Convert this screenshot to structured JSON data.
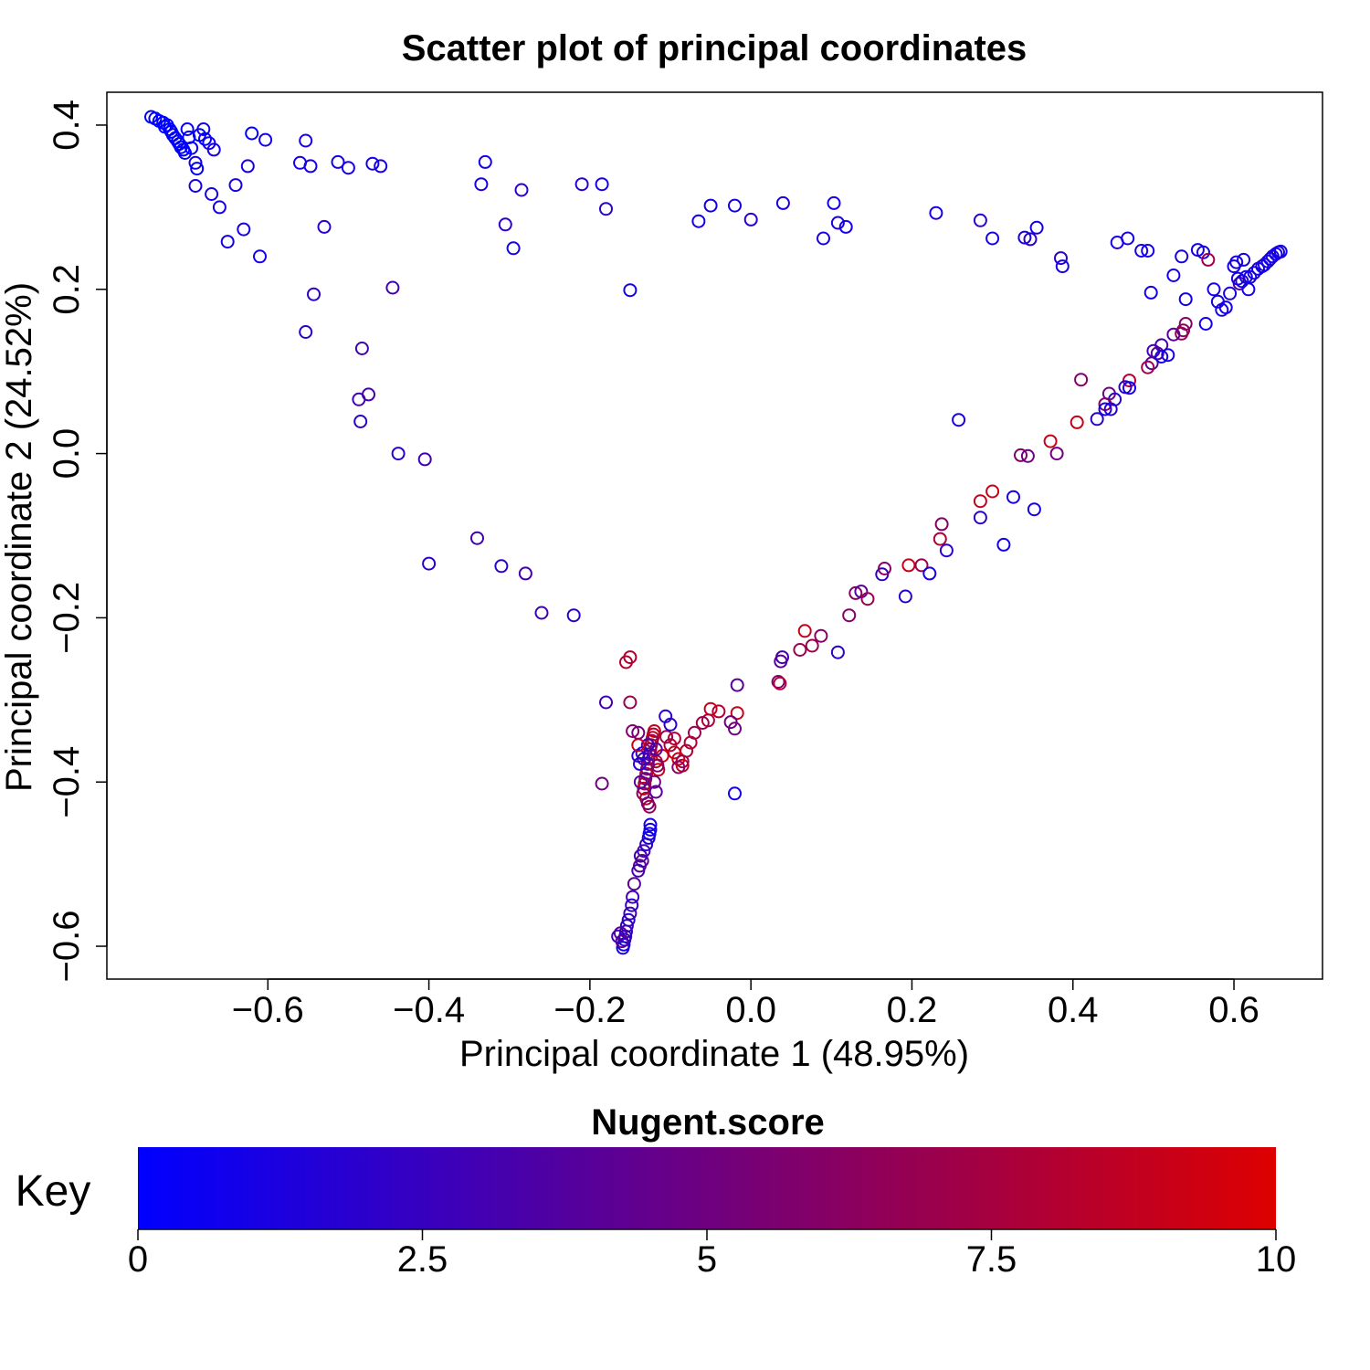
{
  "chart_data": {
    "type": "scatter",
    "title": "Scatter plot of principal coordinates",
    "xlabel": "Principal coordinate 1 (48.95%)",
    "ylabel": "Principal coordinate 2 (24.52%)",
    "xlim": [
      -0.8,
      0.71
    ],
    "ylim": [
      -0.64,
      0.44
    ],
    "xticks": [
      -0.6,
      -0.4,
      -0.2,
      0.0,
      0.2,
      0.4,
      0.6
    ],
    "xtick_labels": [
      "−0.6",
      "−0.4",
      "−0.2",
      "0.0",
      "0.2",
      "0.4",
      "0.6"
    ],
    "yticks": [
      -0.6,
      -0.4,
      -0.2,
      0.0,
      0.2,
      0.4
    ],
    "ytick_labels": [
      "−0.6",
      "−0.4",
      "−0.2",
      "0.0",
      "0.2",
      "0.4"
    ],
    "grid": false,
    "marker": "open-circle",
    "colorbar": {
      "title": "Nugent.score",
      "label": "Key",
      "min": 0,
      "max": 10,
      "ticks": [
        0,
        2.5,
        5,
        7.5,
        10
      ],
      "tick_labels": [
        "0",
        "2.5",
        "5",
        "7.5",
        "10"
      ],
      "low_color": "#0000ff",
      "high_color": "#dd0000"
    },
    "points": [
      [
        -0.745,
        0.41,
        0
      ],
      [
        -0.74,
        0.408,
        0
      ],
      [
        -0.735,
        0.405,
        0
      ],
      [
        -0.73,
        0.403,
        0
      ],
      [
        -0.728,
        0.398,
        0
      ],
      [
        -0.725,
        0.4,
        0
      ],
      [
        -0.722,
        0.395,
        0
      ],
      [
        -0.72,
        0.392,
        0
      ],
      [
        -0.718,
        0.388,
        0
      ],
      [
        -0.715,
        0.384,
        0
      ],
      [
        -0.712,
        0.38,
        0
      ],
      [
        -0.71,
        0.377,
        0
      ],
      [
        -0.708,
        0.373,
        0
      ],
      [
        -0.705,
        0.37,
        0
      ],
      [
        -0.703,
        0.366,
        0
      ],
      [
        -0.7,
        0.395,
        0
      ],
      [
        -0.698,
        0.385,
        0
      ],
      [
        -0.695,
        0.372,
        0
      ],
      [
        -0.69,
        0.354,
        1
      ],
      [
        -0.688,
        0.347,
        0
      ],
      [
        -0.685,
        0.388,
        0
      ],
      [
        -0.68,
        0.395,
        1
      ],
      [
        -0.678,
        0.383,
        0
      ],
      [
        -0.673,
        0.378,
        1
      ],
      [
        -0.67,
        0.316,
        1
      ],
      [
        -0.667,
        0.37,
        1
      ],
      [
        -0.66,
        0.3,
        1
      ],
      [
        -0.69,
        0.326,
        1
      ],
      [
        -0.65,
        0.258,
        1
      ],
      [
        -0.64,
        0.327,
        1
      ],
      [
        -0.63,
        0.273,
        1
      ],
      [
        -0.625,
        0.35,
        1
      ],
      [
        -0.62,
        0.39,
        0
      ],
      [
        -0.61,
        0.24,
        1
      ],
      [
        -0.603,
        0.382,
        1
      ],
      [
        -0.56,
        0.354,
        1
      ],
      [
        -0.553,
        0.381,
        1
      ],
      [
        -0.547,
        0.35,
        1
      ],
      [
        -0.543,
        0.194,
        2
      ],
      [
        -0.53,
        0.276,
        2
      ],
      [
        -0.513,
        0.355,
        1
      ],
      [
        -0.5,
        0.348,
        1
      ],
      [
        -0.47,
        0.353,
        1
      ],
      [
        -0.46,
        0.35,
        1
      ],
      [
        -0.553,
        0.148,
        2
      ],
      [
        -0.483,
        0.128,
        3
      ],
      [
        -0.445,
        0.202,
        3
      ],
      [
        -0.487,
        0.066,
        3
      ],
      [
        -0.475,
        0.072,
        3
      ],
      [
        -0.485,
        0.039,
        2
      ],
      [
        -0.438,
        0.0,
        2
      ],
      [
        -0.405,
        -0.007,
        3
      ],
      [
        -0.4,
        -0.134,
        2
      ],
      [
        -0.34,
        -0.103,
        3
      ],
      [
        -0.31,
        -0.137,
        2
      ],
      [
        -0.28,
        -0.146,
        3
      ],
      [
        -0.26,
        -0.194,
        3
      ],
      [
        -0.22,
        -0.197,
        2
      ],
      [
        -0.33,
        0.355,
        1
      ],
      [
        -0.335,
        0.328,
        1
      ],
      [
        -0.305,
        0.279,
        2
      ],
      [
        -0.295,
        0.25,
        1
      ],
      [
        -0.285,
        0.321,
        2
      ],
      [
        -0.21,
        0.328,
        2
      ],
      [
        -0.185,
        0.328,
        1
      ],
      [
        -0.18,
        0.298,
        2
      ],
      [
        -0.15,
        0.199,
        1
      ],
      [
        -0.065,
        0.283,
        1
      ],
      [
        -0.05,
        0.302,
        1
      ],
      [
        -0.02,
        0.302,
        1
      ],
      [
        0.0,
        0.285,
        2
      ],
      [
        0.04,
        0.305,
        1
      ],
      [
        0.09,
        0.262,
        1
      ],
      [
        0.103,
        0.305,
        1
      ],
      [
        0.108,
        0.281,
        1
      ],
      [
        0.118,
        0.276,
        1
      ],
      [
        0.23,
        0.293,
        1
      ],
      [
        0.285,
        0.284,
        2
      ],
      [
        0.3,
        0.262,
        1
      ],
      [
        0.34,
        0.263,
        1
      ],
      [
        0.347,
        0.261,
        2
      ],
      [
        0.355,
        0.275,
        1
      ],
      [
        0.385,
        0.238,
        2
      ],
      [
        0.387,
        0.228,
        1
      ],
      [
        0.455,
        0.257,
        1
      ],
      [
        0.468,
        0.262,
        1
      ],
      [
        0.485,
        0.247,
        1
      ],
      [
        0.493,
        0.247,
        1
      ],
      [
        0.497,
        0.196,
        1
      ],
      [
        0.525,
        0.217,
        1
      ],
      [
        0.535,
        0.24,
        1
      ],
      [
        0.54,
        0.188,
        1
      ],
      [
        0.555,
        0.248,
        1
      ],
      [
        0.562,
        0.245,
        1
      ],
      [
        0.568,
        0.236,
        7
      ],
      [
        0.565,
        0.158,
        1
      ],
      [
        0.575,
        0.2,
        1
      ],
      [
        0.58,
        0.185,
        1
      ],
      [
        0.585,
        0.175,
        1
      ],
      [
        0.59,
        0.178,
        1
      ],
      [
        0.595,
        0.195,
        1
      ],
      [
        0.6,
        0.228,
        1
      ],
      [
        0.603,
        0.233,
        1
      ],
      [
        0.607,
        0.207,
        4
      ],
      [
        0.61,
        0.21,
        1
      ],
      [
        0.615,
        0.215,
        1
      ],
      [
        0.618,
        0.2,
        1
      ],
      [
        0.62,
        0.215,
        1
      ],
      [
        0.625,
        0.22,
        1
      ],
      [
        0.63,
        0.225,
        1
      ],
      [
        0.635,
        0.228,
        1
      ],
      [
        0.638,
        0.23,
        1
      ],
      [
        0.642,
        0.234,
        1
      ],
      [
        0.645,
        0.237,
        1
      ],
      [
        0.648,
        0.24,
        1
      ],
      [
        0.652,
        0.243,
        1
      ],
      [
        0.655,
        0.245,
        1
      ],
      [
        0.658,
        0.246,
        1
      ],
      [
        0.612,
        0.236,
        1
      ],
      [
        0.605,
        0.213,
        1
      ],
      [
        0.54,
        0.158,
        6
      ],
      [
        0.537,
        0.15,
        6
      ],
      [
        0.535,
        0.146,
        7
      ],
      [
        0.525,
        0.145,
        4
      ],
      [
        0.51,
        0.132,
        3
      ],
      [
        0.505,
        0.122,
        4
      ],
      [
        0.5,
        0.125,
        3
      ],
      [
        0.498,
        0.11,
        4
      ],
      [
        0.493,
        0.105,
        7
      ],
      [
        0.51,
        0.118,
        1
      ],
      [
        0.518,
        0.12,
        1
      ],
      [
        0.47,
        0.089,
        8
      ],
      [
        0.465,
        0.081,
        2
      ],
      [
        0.47,
        0.08,
        1
      ],
      [
        0.445,
        0.073,
        5
      ],
      [
        0.452,
        0.066,
        2
      ],
      [
        0.44,
        0.06,
        6
      ],
      [
        0.447,
        0.054,
        2
      ],
      [
        0.44,
        0.054,
        1
      ],
      [
        0.43,
        0.042,
        2
      ],
      [
        0.41,
        0.09,
        6
      ],
      [
        0.405,
        0.038,
        9
      ],
      [
        0.372,
        0.015,
        9
      ],
      [
        0.38,
        0.0,
        5
      ],
      [
        0.335,
        -0.002,
        6
      ],
      [
        0.344,
        -0.003,
        5
      ],
      [
        0.3,
        -0.046,
        9
      ],
      [
        0.285,
        -0.058,
        9
      ],
      [
        0.285,
        -0.078,
        2
      ],
      [
        0.326,
        -0.053,
        1
      ],
      [
        0.352,
        -0.068,
        1
      ],
      [
        0.314,
        -0.111,
        1
      ],
      [
        0.237,
        -0.086,
        6
      ],
      [
        0.235,
        -0.104,
        8
      ],
      [
        0.243,
        -0.118,
        2
      ],
      [
        0.258,
        0.041,
        1
      ],
      [
        0.196,
        -0.136,
        9
      ],
      [
        0.212,
        -0.136,
        7
      ],
      [
        0.222,
        -0.146,
        1
      ],
      [
        0.163,
        -0.147,
        2
      ],
      [
        0.166,
        -0.14,
        6
      ],
      [
        0.192,
        -0.174,
        2
      ],
      [
        0.13,
        -0.17,
        6
      ],
      [
        0.137,
        -0.168,
        4
      ],
      [
        0.145,
        -0.177,
        7
      ],
      [
        0.122,
        -0.197,
        6
      ],
      [
        0.108,
        -0.242,
        2
      ],
      [
        0.087,
        -0.222,
        6
      ],
      [
        0.076,
        -0.234,
        7
      ],
      [
        0.067,
        -0.216,
        9
      ],
      [
        0.061,
        -0.239,
        7
      ],
      [
        0.039,
        -0.248,
        3
      ],
      [
        0.037,
        -0.253,
        4
      ],
      [
        0.034,
        -0.278,
        6
      ],
      [
        0.036,
        -0.28,
        8
      ],
      [
        -0.017,
        -0.316,
        9
      ],
      [
        -0.02,
        -0.335,
        5
      ],
      [
        -0.017,
        -0.282,
        4
      ],
      [
        -0.025,
        -0.327,
        5
      ],
      [
        -0.02,
        -0.414,
        1
      ],
      [
        -0.04,
        -0.314,
        8
      ],
      [
        -0.05,
        -0.311,
        9
      ],
      [
        -0.053,
        -0.325,
        8
      ],
      [
        -0.06,
        -0.328,
        7
      ],
      [
        -0.07,
        -0.34,
        7
      ],
      [
        -0.075,
        -0.352,
        8
      ],
      [
        -0.08,
        -0.362,
        8
      ],
      [
        -0.085,
        -0.38,
        9
      ],
      [
        -0.09,
        -0.372,
        9
      ],
      [
        -0.095,
        -0.364,
        9
      ],
      [
        -0.1,
        -0.355,
        8
      ],
      [
        -0.105,
        -0.345,
        7
      ],
      [
        -0.11,
        -0.368,
        9
      ],
      [
        -0.115,
        -0.385,
        9
      ],
      [
        -0.118,
        -0.375,
        8
      ],
      [
        -0.1,
        -0.33,
        2
      ],
      [
        -0.106,
        -0.32,
        2
      ],
      [
        -0.09,
        -0.382,
        6
      ],
      [
        -0.085,
        -0.375,
        7
      ],
      [
        -0.095,
        -0.347,
        8
      ],
      [
        -0.12,
        -0.338,
        9
      ],
      [
        -0.121,
        -0.342,
        8
      ],
      [
        -0.122,
        -0.346,
        9
      ],
      [
        -0.123,
        -0.35,
        7
      ],
      [
        -0.124,
        -0.355,
        8
      ],
      [
        -0.125,
        -0.36,
        6
      ],
      [
        -0.126,
        -0.366,
        5
      ],
      [
        -0.127,
        -0.372,
        7
      ],
      [
        -0.128,
        -0.378,
        4
      ],
      [
        -0.129,
        -0.384,
        6
      ],
      [
        -0.13,
        -0.39,
        8
      ],
      [
        -0.131,
        -0.396,
        5
      ],
      [
        -0.132,
        -0.402,
        7
      ],
      [
        -0.133,
        -0.408,
        9
      ],
      [
        -0.134,
        -0.414,
        6
      ],
      [
        -0.13,
        -0.42,
        8
      ],
      [
        -0.128,
        -0.426,
        5
      ],
      [
        -0.126,
        -0.43,
        7
      ],
      [
        -0.135,
        -0.365,
        2
      ],
      [
        -0.133,
        -0.372,
        3
      ],
      [
        -0.118,
        -0.36,
        4
      ],
      [
        -0.116,
        -0.38,
        6
      ],
      [
        -0.138,
        -0.378,
        2
      ],
      [
        -0.128,
        -0.355,
        3
      ],
      [
        -0.14,
        -0.368,
        2
      ],
      [
        -0.14,
        -0.34,
        5
      ],
      [
        -0.14,
        -0.355,
        9
      ],
      [
        -0.137,
        -0.4,
        4
      ],
      [
        -0.12,
        -0.4,
        5
      ],
      [
        -0.118,
        -0.412,
        4
      ],
      [
        -0.155,
        -0.254,
        8
      ],
      [
        -0.15,
        -0.248,
        8
      ],
      [
        -0.15,
        -0.303,
        7
      ],
      [
        -0.147,
        -0.338,
        6
      ],
      [
        -0.18,
        -0.303,
        3
      ],
      [
        -0.185,
        -0.402,
        5
      ],
      [
        -0.125,
        -0.452,
        1
      ],
      [
        -0.125,
        -0.458,
        1
      ],
      [
        -0.126,
        -0.463,
        1
      ],
      [
        -0.127,
        -0.468,
        1
      ],
      [
        -0.13,
        -0.476,
        2
      ],
      [
        -0.133,
        -0.484,
        3
      ],
      [
        -0.135,
        -0.496,
        4
      ],
      [
        -0.137,
        -0.49,
        3
      ],
      [
        -0.138,
        -0.502,
        4
      ],
      [
        -0.14,
        -0.508,
        3
      ],
      [
        -0.145,
        -0.524,
        4
      ],
      [
        -0.147,
        -0.54,
        3
      ],
      [
        -0.148,
        -0.55,
        2
      ],
      [
        -0.15,
        -0.56,
        3
      ],
      [
        -0.152,
        -0.568,
        2
      ],
      [
        -0.154,
        -0.575,
        2
      ],
      [
        -0.155,
        -0.582,
        3
      ],
      [
        -0.156,
        -0.588,
        2
      ],
      [
        -0.157,
        -0.592,
        2
      ],
      [
        -0.158,
        -0.598,
        1
      ],
      [
        -0.159,
        -0.602,
        1
      ],
      [
        -0.16,
        -0.594,
        4
      ],
      [
        -0.162,
        -0.584,
        4
      ],
      [
        -0.165,
        -0.588,
        3
      ]
    ]
  }
}
